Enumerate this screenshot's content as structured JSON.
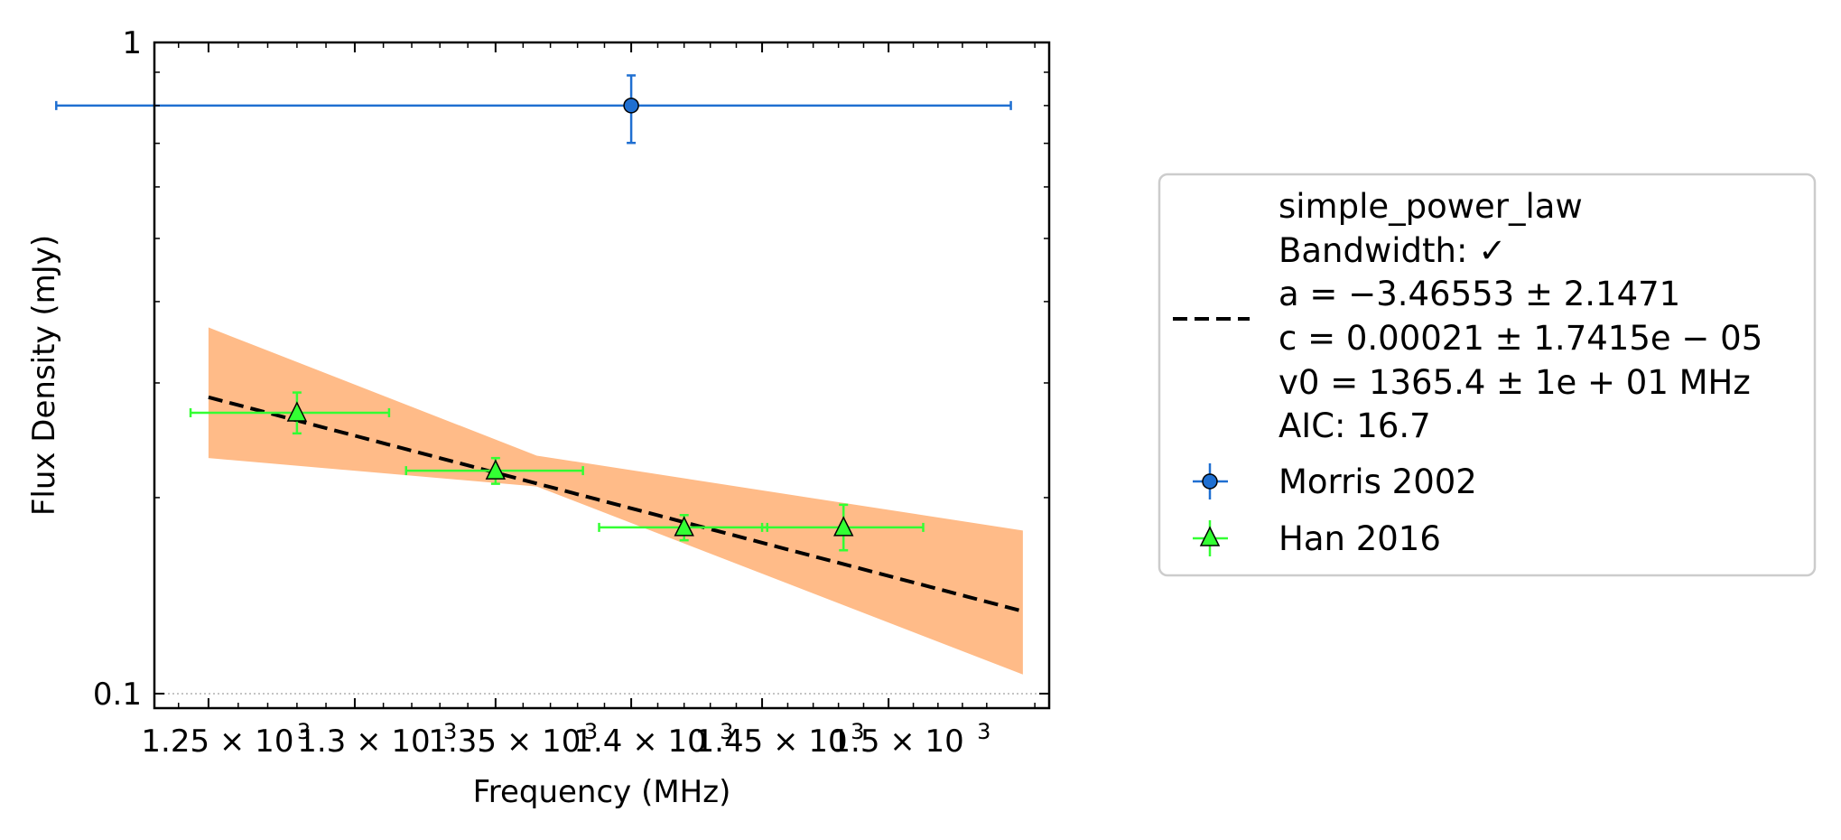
{
  "chart_data": {
    "type": "scatter",
    "xlabel": "Frequency (MHz)",
    "ylabel": "Flux Density (mJy)",
    "xlim": [
      1232,
      1566
    ],
    "ylim": [
      0.095,
      1.0
    ],
    "x_scale": "log",
    "y_scale": "log",
    "x_ticks": [
      1250,
      1300,
      1350,
      1400,
      1450,
      1500
    ],
    "x_tick_labels": [
      "1.25 × 10",
      "1.3 × 10",
      "1.35 × 10",
      "1.4 × 10",
      "1.45 × 10",
      "1.5 × 10"
    ],
    "x_tick_exponent": "3",
    "y_ticks": [
      0.1,
      1
    ],
    "y_tick_labels": [
      "0.1",
      "1"
    ],
    "y_reference_line": 0.1,
    "legend_placement": "outside-right",
    "series": [
      {
        "name": "Morris 2002",
        "marker": "circle",
        "color": "#1f6fd1",
        "points": [
          {
            "x": 1400,
            "y": 0.8,
            "xerr_minus": 200,
            "xerr_plus": 150,
            "yerr_minus": 0.099,
            "yerr_plus": 0.09
          }
        ]
      },
      {
        "name": "Han 2016",
        "marker": "triangle",
        "color": "#33ff33",
        "points": [
          {
            "x": 1280,
            "y": 0.27,
            "xerr_minus": 36,
            "xerr_plus": 32,
            "yerr_minus": 0.019,
            "yerr_plus": 0.02
          },
          {
            "x": 1350,
            "y": 0.22,
            "xerr_minus": 32,
            "xerr_plus": 32,
            "yerr_minus": 0.01,
            "yerr_plus": 0.01
          },
          {
            "x": 1420,
            "y": 0.18,
            "xerr_minus": 32,
            "xerr_plus": 32,
            "yerr_minus": 0.008,
            "yerr_plus": 0.008
          },
          {
            "x": 1482,
            "y": 0.18,
            "xerr_minus": 32,
            "xerr_plus": 32,
            "yerr_minus": 0.014,
            "yerr_plus": 0.015
          }
        ]
      }
    ],
    "fit": {
      "name": "simple_power_law",
      "style": "dashed",
      "color": "#000000",
      "model": "c * (x / v0) ^ a",
      "a": -3.46553,
      "c": 0.00021,
      "v0": 1365.4,
      "x_range": [
        1250,
        1555
      ],
      "band_color": "#ffbb88",
      "band": [
        {
          "x": 1250,
          "lo": 0.23,
          "hi": 0.365
        },
        {
          "x": 1365,
          "lo": 0.208,
          "hi": 0.232
        },
        {
          "x": 1555,
          "lo": 0.107,
          "hi": 0.178
        }
      ]
    },
    "legend": {
      "fit_lines": [
        "simple_power_law",
        "Bandwidth: ✓",
        "a = −3.46553 ± 2.1471",
        "c = 0.00021 ± 1.7415e − 05",
        "v0 = 1365.4 ± 1e + 01 MHz",
        "AIC: 16.7"
      ],
      "series_labels": [
        "Morris 2002",
        "Han 2016"
      ]
    }
  }
}
